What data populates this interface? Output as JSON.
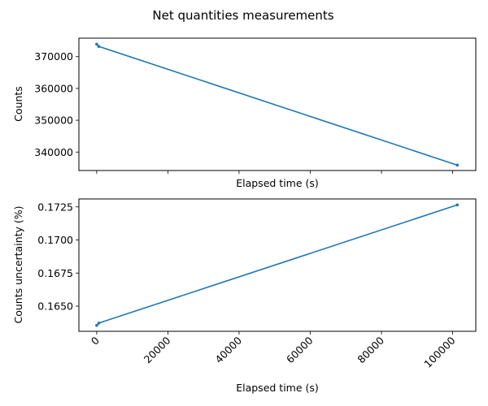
{
  "figure": {
    "title": "Net quantities measurements"
  },
  "chart_data": [
    {
      "type": "line",
      "title": "",
      "xlabel": "Elapsed time (s)",
      "ylabel": "Counts",
      "series_color": "#1f77b4",
      "x": [
        0,
        600,
        101300
      ],
      "y": [
        373900,
        373200,
        335900
      ],
      "xlim": [
        -5000,
        106500
      ],
      "ylim": [
        334200,
        375800
      ],
      "xticks": [
        0,
        20000,
        40000,
        60000,
        80000,
        100000
      ],
      "xtick_labels_visible": false,
      "yticks": [
        340000,
        350000,
        360000,
        370000
      ],
      "ytick_labels": [
        "340000",
        "350000",
        "360000",
        "370000"
      ],
      "grid": false,
      "marker": "small-circle"
    },
    {
      "type": "line",
      "title": "",
      "xlabel": "Elapsed time (s)",
      "ylabel": "Counts uncertainty (%)",
      "series_color": "#1f77b4",
      "x": [
        0,
        600,
        101300
      ],
      "y": [
        0.16355,
        0.16372,
        0.17265
      ],
      "xlim": [
        -5000,
        106500
      ],
      "ylim": [
        0.1631,
        0.1731
      ],
      "xticks": [
        0,
        20000,
        40000,
        60000,
        80000,
        100000
      ],
      "xtick_labels": [
        "0",
        "20000",
        "40000",
        "60000",
        "80000",
        "100000"
      ],
      "xtick_rotation": 45,
      "yticks": [
        0.165,
        0.1675,
        0.17,
        0.1725
      ],
      "ytick_labels": [
        "0.1650",
        "0.1675",
        "0.1700",
        "0.1725"
      ],
      "grid": false,
      "marker": "small-circle"
    }
  ]
}
